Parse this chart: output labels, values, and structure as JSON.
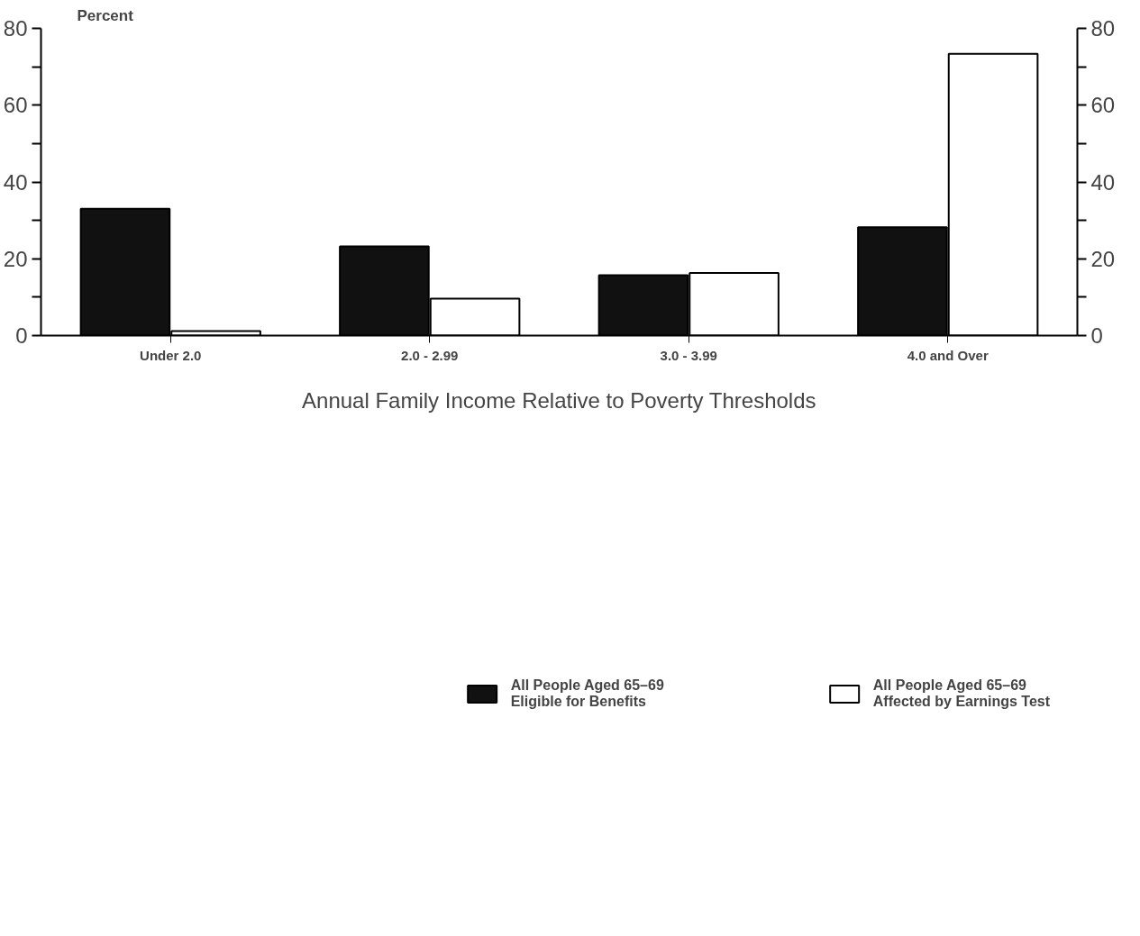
{
  "chart_data": {
    "type": "bar",
    "ylabel": "Percent",
    "xlabel": "Annual Family Income Relative to Poverty Thresholds",
    "categories": [
      "Under 2.0",
      "2.0 - 2.99",
      "3.0 - 3.99",
      "4.0 and Over"
    ],
    "series": [
      {
        "name": "All People Aged 65–69\nEligible for Benefits",
        "color": "#111111",
        "values": [
          33,
          23.2,
          15.7,
          28.2
        ]
      },
      {
        "name": "All People Aged 65–69\nAffected by Earnings Test",
        "color": "#ffffff",
        "values": [
          1.2,
          9.6,
          16.3,
          73.4
        ]
      }
    ],
    "ylim": [
      0,
      80
    ],
    "yticks": [
      0,
      {
        "value": 10,
        "label": null
      },
      20,
      {
        "value": 30,
        "label": null
      },
      40,
      {
        "value": 50,
        "label": null
      },
      60,
      {
        "value": 70,
        "label": null
      },
      80
    ],
    "y2lim": [
      0,
      80
    ],
    "y2ticks": [
      0,
      {
        "value": 10,
        "label": null
      },
      20,
      {
        "value": 30,
        "label": null
      },
      40,
      {
        "value": 50,
        "label": null
      },
      60,
      {
        "value": 70,
        "label": null
      },
      80
    ],
    "grid": false,
    "legend": "bottom"
  }
}
